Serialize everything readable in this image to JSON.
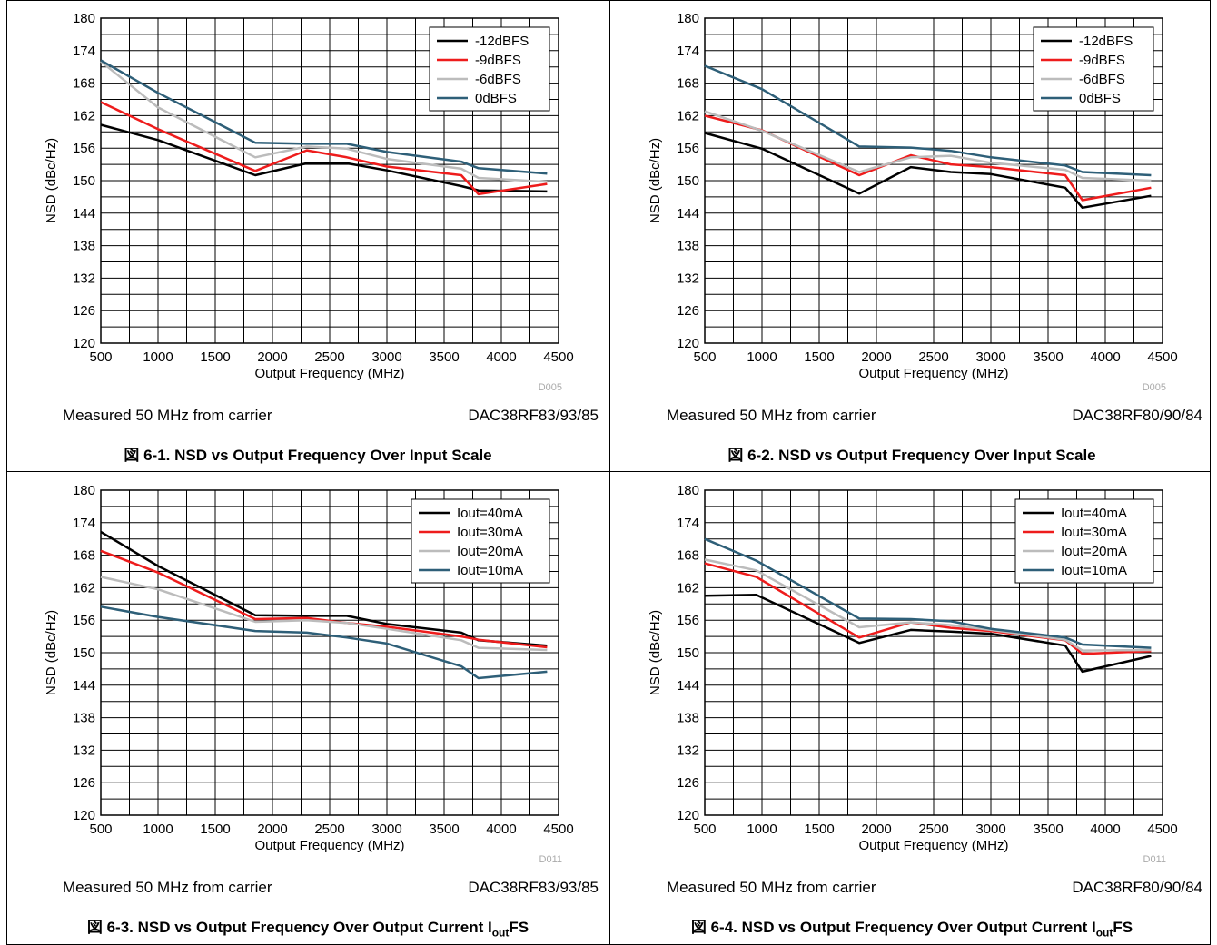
{
  "chart_data": [
    {
      "type": "line",
      "id": "fig1",
      "xlabel": "Output Frequency (MHz)",
      "ylabel": "NSD (dBc/Hz)",
      "xlim": [
        500,
        4500
      ],
      "ylim": [
        120,
        180
      ],
      "xticks": [
        500,
        1000,
        1500,
        2000,
        2500,
        3000,
        3500,
        4000,
        4500
      ],
      "yticks": [
        120,
        126,
        132,
        138,
        144,
        150,
        156,
        162,
        168,
        174,
        180
      ],
      "grid": true,
      "legend_position": "top-right",
      "code": "D005",
      "footnote_left": "Measured 50 MHz from carrier",
      "footnote_right": "DAC38RF83/93/85",
      "caption": "図 6-1. NSD vs Output Frequency Over Input Scale",
      "series": [
        {
          "name": "-12dBFS",
          "color": "#000000",
          "x": [
            500,
            1000,
            1850,
            2300,
            2650,
            3000,
            3650,
            3800,
            4400
          ],
          "y": [
            160.3,
            157.5,
            151.0,
            153.2,
            153.2,
            151.9,
            149.0,
            148.2,
            148.0
          ]
        },
        {
          "name": "-9dBFS",
          "color": "#ee1c1c",
          "x": [
            500,
            1000,
            1850,
            2300,
            2650,
            3000,
            3650,
            3800,
            4400
          ],
          "y": [
            164.5,
            159.5,
            151.8,
            155.6,
            154.3,
            152.6,
            151.0,
            147.5,
            149.4
          ]
        },
        {
          "name": "-6dBFS",
          "color": "#bcbcbc",
          "x": [
            500,
            1000,
            1850,
            2300,
            2650,
            3000,
            3650,
            3800,
            4400
          ],
          "y": [
            172.0,
            163.5,
            154.3,
            156.3,
            155.9,
            154.0,
            152.2,
            150.5,
            149.8
          ]
        },
        {
          "name": "0dBFS",
          "color": "#2e5f78",
          "x": [
            500,
            1000,
            1850,
            2300,
            2650,
            3000,
            3650,
            3800,
            4400
          ],
          "y": [
            172.2,
            166.2,
            157.0,
            156.8,
            156.8,
            155.3,
            153.5,
            152.3,
            151.3
          ]
        }
      ]
    },
    {
      "type": "line",
      "id": "fig2",
      "xlabel": "Output Frequency (MHz)",
      "ylabel": "NSD (dBc/Hz)",
      "xlim": [
        500,
        4500
      ],
      "ylim": [
        120,
        180
      ],
      "xticks": [
        500,
        1000,
        1500,
        2000,
        2500,
        3000,
        3500,
        4000,
        4500
      ],
      "yticks": [
        120,
        126,
        132,
        138,
        144,
        150,
        156,
        162,
        168,
        174,
        180
      ],
      "grid": true,
      "legend_position": "top-right",
      "code": "D005",
      "footnote_left": "Measured 50 MHz from carrier",
      "footnote_right": "DAC38RF80/90/84",
      "caption": "図 6-2. NSD vs Output Frequency Over Input Scale",
      "series": [
        {
          "name": "-12dBFS",
          "color": "#000000",
          "x": [
            500,
            1000,
            1850,
            2300,
            2650,
            3000,
            3650,
            3800,
            4400
          ],
          "y": [
            158.8,
            155.9,
            147.6,
            152.5,
            151.6,
            151.2,
            148.7,
            145.0,
            147.2
          ]
        },
        {
          "name": "-9dBFS",
          "color": "#ee1c1c",
          "x": [
            500,
            1000,
            1850,
            2300,
            2650,
            3000,
            3650,
            3800,
            4400
          ],
          "y": [
            162.0,
            159.3,
            151.0,
            154.7,
            153.0,
            152.5,
            151.0,
            146.4,
            148.7
          ]
        },
        {
          "name": "-6dBFS",
          "color": "#bcbcbc",
          "x": [
            500,
            1000,
            1850,
            2300,
            2650,
            3000,
            3650,
            3800,
            4400
          ],
          "y": [
            162.8,
            159.2,
            151.6,
            154.3,
            154.6,
            153.3,
            152.0,
            150.5,
            150.0
          ]
        },
        {
          "name": "0dBFS",
          "color": "#2e5f78",
          "x": [
            500,
            1000,
            1850,
            2300,
            2650,
            3000,
            3650,
            3800,
            4400
          ],
          "y": [
            171.2,
            166.9,
            156.3,
            156.1,
            155.5,
            154.3,
            152.8,
            151.6,
            151.0
          ]
        }
      ]
    },
    {
      "type": "line",
      "id": "fig3",
      "xlabel": "Output Frequency (MHz)",
      "ylabel": "NSD (dBc/Hz)",
      "xlim": [
        500,
        4500
      ],
      "ylim": [
        120,
        180
      ],
      "xticks": [
        500,
        1000,
        1500,
        2000,
        2500,
        3000,
        3500,
        4000,
        4500
      ],
      "yticks": [
        120,
        126,
        132,
        138,
        144,
        150,
        156,
        162,
        168,
        174,
        180
      ],
      "grid": true,
      "legend_position": "top-right",
      "code": "D011",
      "footnote_left": "Measured 50 MHz from carrier",
      "footnote_right": "DAC38RF83/93/85",
      "caption_prefix": "図 6-3. NSD vs Output Frequency Over Output Current I",
      "caption_sub": "out",
      "caption_suffix": "FS",
      "series": [
        {
          "name": "Iout=40mA",
          "color": "#000000",
          "x": [
            500,
            1000,
            1850,
            2300,
            2650,
            3000,
            3650,
            3800,
            4400
          ],
          "y": [
            172.3,
            166.0,
            156.9,
            156.8,
            156.8,
            155.3,
            153.7,
            152.3,
            151.3
          ]
        },
        {
          "name": "Iout=30mA",
          "color": "#ee1c1c",
          "x": [
            500,
            1000,
            1850,
            2300,
            2650,
            3000,
            3650,
            3800,
            4400
          ],
          "y": [
            168.8,
            164.8,
            156.2,
            156.4,
            155.5,
            154.8,
            153.0,
            152.4,
            151.0
          ]
        },
        {
          "name": "Iout=20mA",
          "color": "#bcbcbc",
          "x": [
            500,
            1000,
            1850,
            2300,
            2650,
            3000,
            3650,
            3800,
            4400
          ],
          "y": [
            164.0,
            161.7,
            155.7,
            156.0,
            155.5,
            154.4,
            152.3,
            150.9,
            150.5
          ]
        },
        {
          "name": "Iout=10mA",
          "color": "#2e5f78",
          "x": [
            500,
            1000,
            1850,
            2300,
            2650,
            3000,
            3650,
            3800,
            4400
          ],
          "y": [
            158.5,
            156.6,
            154.0,
            153.7,
            152.8,
            151.7,
            147.5,
            145.3,
            146.5
          ]
        }
      ]
    },
    {
      "type": "line",
      "id": "fig4",
      "xlabel": "Output Frequency (MHz)",
      "ylabel": "NSD (dBc/Hz)",
      "xlim": [
        500,
        4500
      ],
      "ylim": [
        120,
        180
      ],
      "xticks": [
        500,
        1000,
        1500,
        2000,
        2500,
        3000,
        3500,
        4000,
        4500
      ],
      "yticks": [
        120,
        126,
        132,
        138,
        144,
        150,
        156,
        162,
        168,
        174,
        180
      ],
      "grid": true,
      "legend_position": "top-right",
      "code": "D011",
      "footnote_left": "Measured 50 MHz from carrier",
      "footnote_right": "DAC38RF80/90/84",
      "caption_prefix": "図 6-4. NSD vs Output Frequency Over Output Current I",
      "caption_sub": "out",
      "caption_suffix": "FS",
      "series": [
        {
          "name": "Iout=40mA",
          "color": "#000000",
          "x": [
            500,
            950,
            1850,
            2300,
            2650,
            3000,
            3650,
            3800,
            4400
          ],
          "y": [
            160.5,
            160.7,
            151.8,
            154.2,
            153.9,
            153.5,
            151.3,
            146.5,
            149.4
          ]
        },
        {
          "name": "Iout=30mA",
          "color": "#ee1c1c",
          "x": [
            500,
            950,
            1850,
            2300,
            2650,
            3000,
            3650,
            3800,
            4400
          ],
          "y": [
            166.5,
            164.0,
            152.8,
            155.6,
            154.6,
            154.0,
            152.3,
            149.8,
            150.3
          ]
        },
        {
          "name": "Iout=20mA",
          "color": "#bcbcbc",
          "x": [
            500,
            950,
            1850,
            2300,
            2650,
            3000,
            3650,
            3800,
            4400
          ],
          "y": [
            167.2,
            165.2,
            154.7,
            155.6,
            155.1,
            154.2,
            152.4,
            150.4,
            150.5
          ]
        },
        {
          "name": "Iout=10mA",
          "color": "#2e5f78",
          "x": [
            500,
            950,
            1850,
            2300,
            2650,
            3000,
            3650,
            3800,
            4400
          ],
          "y": [
            171.0,
            167.0,
            156.3,
            156.2,
            155.8,
            154.4,
            152.8,
            151.5,
            150.9
          ]
        }
      ]
    }
  ]
}
